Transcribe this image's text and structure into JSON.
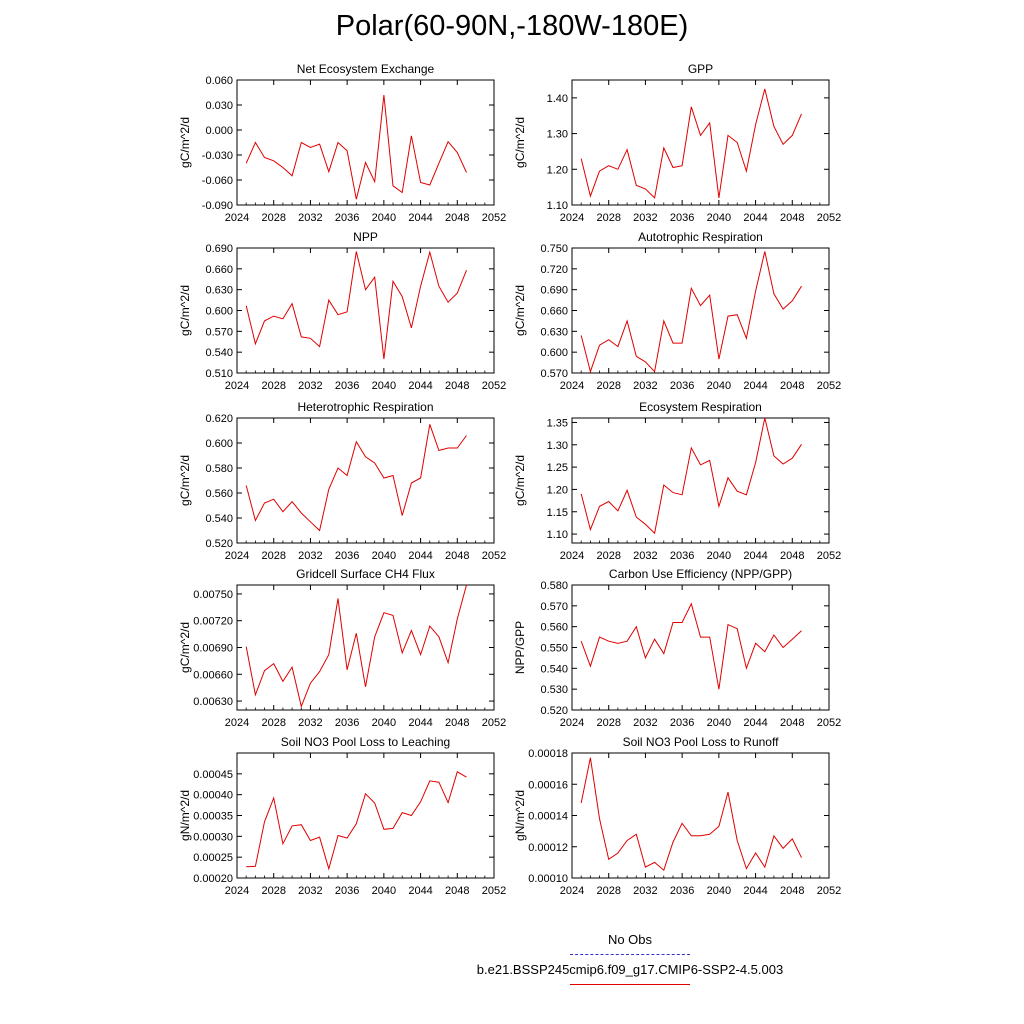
{
  "page": {
    "title": "Polar(60-90N,-180W-180E)"
  },
  "legend": {
    "obs_label": "No Obs",
    "case_label": "b.e21.BSSP245cmip6.f09_g17.CMIP6-SSP2-4.5.003",
    "obs_color": "#3333cc",
    "case_color": "#e00000"
  },
  "chart_data": [
    {
      "type": "line",
      "title": "Net Ecosystem Exchange",
      "ylabel": "gC/m^2/d",
      "xlim": [
        2024,
        2052
      ],
      "xticks": [
        2024,
        2028,
        2032,
        2036,
        2040,
        2044,
        2048,
        2052
      ],
      "ylim": [
        -0.09,
        0.06
      ],
      "yticks": [
        -0.09,
        -0.06,
        -0.03,
        0.0,
        0.03,
        0.06
      ],
      "ydec": 3,
      "x": [
        2025,
        2026,
        2027,
        2028,
        2029,
        2030,
        2031,
        2032,
        2033,
        2034,
        2035,
        2036,
        2037,
        2038,
        2039,
        2040,
        2041,
        2042,
        2043,
        2044,
        2045,
        2046,
        2047,
        2048,
        2049
      ],
      "values": [
        -0.04,
        -0.015,
        -0.033,
        -0.037,
        -0.045,
        -0.055,
        -0.015,
        -0.021,
        -0.017,
        -0.05,
        -0.015,
        -0.025,
        -0.083,
        -0.039,
        -0.062,
        0.042,
        -0.067,
        -0.075,
        -0.007,
        -0.063,
        -0.066,
        -0.04,
        -0.014,
        -0.027,
        -0.051
      ]
    },
    {
      "type": "line",
      "title": "GPP",
      "ylabel": "gC/m^2/d",
      "xlim": [
        2024,
        2052
      ],
      "xticks": [
        2024,
        2028,
        2032,
        2036,
        2040,
        2044,
        2048,
        2052
      ],
      "ylim": [
        1.1,
        1.45
      ],
      "yticks": [
        1.1,
        1.2,
        1.3,
        1.4
      ],
      "ydec": 2,
      "x": [
        2025,
        2026,
        2027,
        2028,
        2029,
        2030,
        2031,
        2032,
        2033,
        2034,
        2035,
        2036,
        2037,
        2038,
        2039,
        2040,
        2041,
        2042,
        2043,
        2044,
        2045,
        2046,
        2047,
        2048,
        2049
      ],
      "values": [
        1.23,
        1.125,
        1.195,
        1.21,
        1.2,
        1.255,
        1.155,
        1.145,
        1.12,
        1.26,
        1.205,
        1.21,
        1.375,
        1.295,
        1.33,
        1.12,
        1.295,
        1.275,
        1.195,
        1.325,
        1.425,
        1.32,
        1.27,
        1.295,
        1.355
      ]
    },
    {
      "type": "line",
      "title": "NPP",
      "ylabel": "gC/m^2/d",
      "xlim": [
        2024,
        2052
      ],
      "xticks": [
        2024,
        2028,
        2032,
        2036,
        2040,
        2044,
        2048,
        2052
      ],
      "ylim": [
        0.51,
        0.69
      ],
      "yticks": [
        0.51,
        0.54,
        0.57,
        0.6,
        0.63,
        0.66,
        0.69
      ],
      "ydec": 3,
      "x": [
        2025,
        2026,
        2027,
        2028,
        2029,
        2030,
        2031,
        2032,
        2033,
        2034,
        2035,
        2036,
        2037,
        2038,
        2039,
        2040,
        2041,
        2042,
        2043,
        2044,
        2045,
        2046,
        2047,
        2048,
        2049
      ],
      "values": [
        0.607,
        0.552,
        0.585,
        0.592,
        0.588,
        0.61,
        0.562,
        0.56,
        0.548,
        0.615,
        0.594,
        0.598,
        0.685,
        0.63,
        0.648,
        0.53,
        0.642,
        0.62,
        0.575,
        0.635,
        0.684,
        0.635,
        0.612,
        0.625,
        0.658
      ]
    },
    {
      "type": "line",
      "title": "Autotrophic Respiration",
      "ylabel": "gC/m^2/d",
      "xlim": [
        2024,
        2052
      ],
      "xticks": [
        2024,
        2028,
        2032,
        2036,
        2040,
        2044,
        2048,
        2052
      ],
      "ylim": [
        0.57,
        0.75
      ],
      "yticks": [
        0.57,
        0.6,
        0.63,
        0.66,
        0.69,
        0.72,
        0.75
      ],
      "ydec": 3,
      "x": [
        2025,
        2026,
        2027,
        2028,
        2029,
        2030,
        2031,
        2032,
        2033,
        2034,
        2035,
        2036,
        2037,
        2038,
        2039,
        2040,
        2041,
        2042,
        2043,
        2044,
        2045,
        2046,
        2047,
        2048,
        2049
      ],
      "values": [
        0.624,
        0.572,
        0.61,
        0.618,
        0.608,
        0.645,
        0.594,
        0.586,
        0.572,
        0.645,
        0.613,
        0.613,
        0.692,
        0.667,
        0.682,
        0.59,
        0.652,
        0.654,
        0.62,
        0.688,
        0.745,
        0.684,
        0.662,
        0.674,
        0.695
      ]
    },
    {
      "type": "line",
      "title": "Heterotrophic Respiration",
      "ylabel": "gC/m^2/d",
      "xlim": [
        2024,
        2052
      ],
      "xticks": [
        2024,
        2028,
        2032,
        2036,
        2040,
        2044,
        2048,
        2052
      ],
      "ylim": [
        0.52,
        0.62
      ],
      "yticks": [
        0.52,
        0.54,
        0.56,
        0.58,
        0.6,
        0.62
      ],
      "ydec": 3,
      "x": [
        2025,
        2026,
        2027,
        2028,
        2029,
        2030,
        2031,
        2032,
        2033,
        2034,
        2035,
        2036,
        2037,
        2038,
        2039,
        2040,
        2041,
        2042,
        2043,
        2044,
        2045,
        2046,
        2047,
        2048,
        2049
      ],
      "values": [
        0.566,
        0.538,
        0.552,
        0.555,
        0.545,
        0.553,
        0.544,
        0.537,
        0.53,
        0.563,
        0.58,
        0.574,
        0.601,
        0.589,
        0.584,
        0.572,
        0.574,
        0.542,
        0.568,
        0.572,
        0.615,
        0.594,
        0.596,
        0.596,
        0.606
      ]
    },
    {
      "type": "line",
      "title": "Ecosystem Respiration",
      "ylabel": "gC/m^2/d",
      "xlim": [
        2024,
        2052
      ],
      "xticks": [
        2024,
        2028,
        2032,
        2036,
        2040,
        2044,
        2048,
        2052
      ],
      "ylim": [
        1.08,
        1.36
      ],
      "yticks": [
        1.1,
        1.15,
        1.2,
        1.25,
        1.3,
        1.35
      ],
      "ydec": 2,
      "x": [
        2025,
        2026,
        2027,
        2028,
        2029,
        2030,
        2031,
        2032,
        2033,
        2034,
        2035,
        2036,
        2037,
        2038,
        2039,
        2040,
        2041,
        2042,
        2043,
        2044,
        2045,
        2046,
        2047,
        2048,
        2049
      ],
      "values": [
        1.19,
        1.11,
        1.162,
        1.173,
        1.152,
        1.198,
        1.138,
        1.122,
        1.102,
        1.21,
        1.193,
        1.188,
        1.293,
        1.255,
        1.265,
        1.162,
        1.226,
        1.196,
        1.188,
        1.26,
        1.36,
        1.275,
        1.257,
        1.27,
        1.301
      ]
    },
    {
      "type": "line",
      "title": "Gridcell Surface CH4 Flux",
      "ylabel": "gC/m^2/d",
      "xlim": [
        2024,
        2052
      ],
      "xticks": [
        2024,
        2028,
        2032,
        2036,
        2040,
        2044,
        2048,
        2052
      ],
      "ylim": [
        0.0062,
        0.0076
      ],
      "yticks": [
        0.0063,
        0.0066,
        0.0069,
        0.0072,
        0.0075
      ],
      "ydec": 5,
      "x": [
        2025,
        2026,
        2027,
        2028,
        2029,
        2030,
        2031,
        2032,
        2033,
        2034,
        2035,
        2036,
        2037,
        2038,
        2039,
        2040,
        2041,
        2042,
        2043,
        2044,
        2045,
        2046,
        2047,
        2048,
        2049
      ],
      "values": [
        0.00691,
        0.00637,
        0.00664,
        0.00672,
        0.00652,
        0.00668,
        0.00624,
        0.0065,
        0.00663,
        0.00682,
        0.00745,
        0.00665,
        0.00706,
        0.00646,
        0.00702,
        0.00729,
        0.00726,
        0.00684,
        0.00709,
        0.00682,
        0.00714,
        0.00702,
        0.00673,
        0.00722,
        0.0076
      ]
    },
    {
      "type": "line",
      "title": "Carbon Use Efficiency (NPP/GPP)",
      "ylabel": "NPP/GPP",
      "xlim": [
        2024,
        2052
      ],
      "xticks": [
        2024,
        2028,
        2032,
        2036,
        2040,
        2044,
        2048,
        2052
      ],
      "ylim": [
        0.52,
        0.58
      ],
      "yticks": [
        0.52,
        0.53,
        0.54,
        0.55,
        0.56,
        0.57,
        0.58
      ],
      "ydec": 3,
      "x": [
        2025,
        2026,
        2027,
        2028,
        2029,
        2030,
        2031,
        2032,
        2033,
        2034,
        2035,
        2036,
        2037,
        2038,
        2039,
        2040,
        2041,
        2042,
        2043,
        2044,
        2045,
        2046,
        2047,
        2048,
        2049
      ],
      "values": [
        0.553,
        0.541,
        0.555,
        0.553,
        0.552,
        0.553,
        0.56,
        0.545,
        0.554,
        0.547,
        0.562,
        0.562,
        0.571,
        0.555,
        0.555,
        0.53,
        0.561,
        0.559,
        0.54,
        0.552,
        0.548,
        0.556,
        0.55,
        0.554,
        0.558
      ]
    },
    {
      "type": "line",
      "title": "Soil NO3 Pool Loss to Leaching",
      "ylabel": "gN/m^2/d",
      "xlim": [
        2024,
        2052
      ],
      "xticks": [
        2024,
        2028,
        2032,
        2036,
        2040,
        2044,
        2048,
        2052
      ],
      "ylim": [
        0.0002,
        0.0005
      ],
      "yticks": [
        0.0002,
        0.00025,
        0.0003,
        0.00035,
        0.0004,
        0.00045
      ],
      "ydec": 5,
      "x": [
        2025,
        2026,
        2027,
        2028,
        2029,
        2030,
        2031,
        2032,
        2033,
        2034,
        2035,
        2036,
        2037,
        2038,
        2039,
        2040,
        2041,
        2042,
        2043,
        2044,
        2045,
        2046,
        2047,
        2048,
        2049
      ],
      "values": [
        0.000227,
        0.000228,
        0.000335,
        0.000392,
        0.000282,
        0.000325,
        0.000328,
        0.00029,
        0.000298,
        0.000222,
        0.000302,
        0.000296,
        0.00033,
        0.000402,
        0.00038,
        0.000317,
        0.000319,
        0.000357,
        0.00035,
        0.000383,
        0.000433,
        0.00043,
        0.000381,
        0.000455,
        0.000442
      ]
    },
    {
      "type": "line",
      "title": "Soil NO3 Pool Loss to Runoff",
      "ylabel": "gN/m^2/d",
      "xlim": [
        2024,
        2052
      ],
      "xticks": [
        2024,
        2028,
        2032,
        2036,
        2040,
        2044,
        2048,
        2052
      ],
      "ylim": [
        0.0001,
        0.00018
      ],
      "yticks": [
        0.0001,
        0.00012,
        0.00014,
        0.00016,
        0.00018
      ],
      "ydec": 5,
      "x": [
        2025,
        2026,
        2027,
        2028,
        2029,
        2030,
        2031,
        2032,
        2033,
        2034,
        2035,
        2036,
        2037,
        2038,
        2039,
        2040,
        2041,
        2042,
        2043,
        2044,
        2045,
        2046,
        2047,
        2048,
        2049
      ],
      "values": [
        0.000148,
        0.000177,
        0.000138,
        0.000112,
        0.000116,
        0.000124,
        0.000128,
        0.000107,
        0.00011,
        0.000105,
        0.000123,
        0.000135,
        0.000127,
        0.000127,
        0.000128,
        0.000133,
        0.000155,
        0.000124,
        0.000106,
        0.000116,
        0.000107,
        0.000127,
        0.000119,
        0.000125,
        0.000113
      ]
    }
  ]
}
